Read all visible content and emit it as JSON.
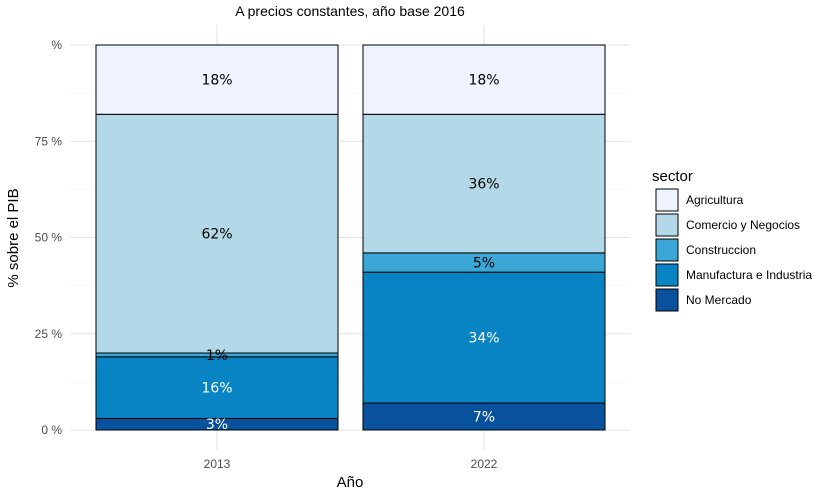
{
  "chart_data": {
    "type": "bar",
    "stacked": true,
    "title": "A precios constantes, año base 2016",
    "xlabel": "Año",
    "ylabel": "% sobre el PIB",
    "ylim": [
      0,
      100
    ],
    "y_ticks": [
      {
        "value": 0,
        "label": "0 %"
      },
      {
        "value": 25,
        "label": "25 %"
      },
      {
        "value": 50,
        "label": "50 %"
      },
      {
        "value": 75,
        "label": "75 %"
      },
      {
        "value": 100,
        "label": "%"
      }
    ],
    "grid": true,
    "categories": [
      "2013",
      "2022"
    ],
    "legend": {
      "title": "sector",
      "position": "right"
    },
    "series": [
      {
        "name": "No Mercado",
        "color": "#08519c",
        "label_color": "#ffffff",
        "values": [
          3,
          7
        ],
        "labels": [
          "3%",
          "7%"
        ]
      },
      {
        "name": "Manufactura e Industria",
        "color": "#0884c4",
        "label_color": "#ffffff",
        "values": [
          16,
          34
        ],
        "labels": [
          "16%",
          "34%"
        ]
      },
      {
        "name": "Construccion",
        "color": "#3aa7d6",
        "label_color": "#000000",
        "values": [
          1,
          5
        ],
        "labels": [
          "1%",
          "5%"
        ]
      },
      {
        "name": "Comercio y Negocios",
        "color": "#b3d8e8",
        "label_color": "#000000",
        "values": [
          62,
          36
        ],
        "labels": [
          "62%",
          "36%"
        ]
      },
      {
        "name": "Agricultura",
        "color": "#eff3ff",
        "label_color": "#000000",
        "values": [
          18,
          18
        ],
        "labels": [
          "18%",
          "18%"
        ]
      }
    ],
    "legend_order": [
      "Agricultura",
      "Comercio y Negocios",
      "Construccion",
      "Manufactura e Industria",
      "No Mercado"
    ]
  }
}
